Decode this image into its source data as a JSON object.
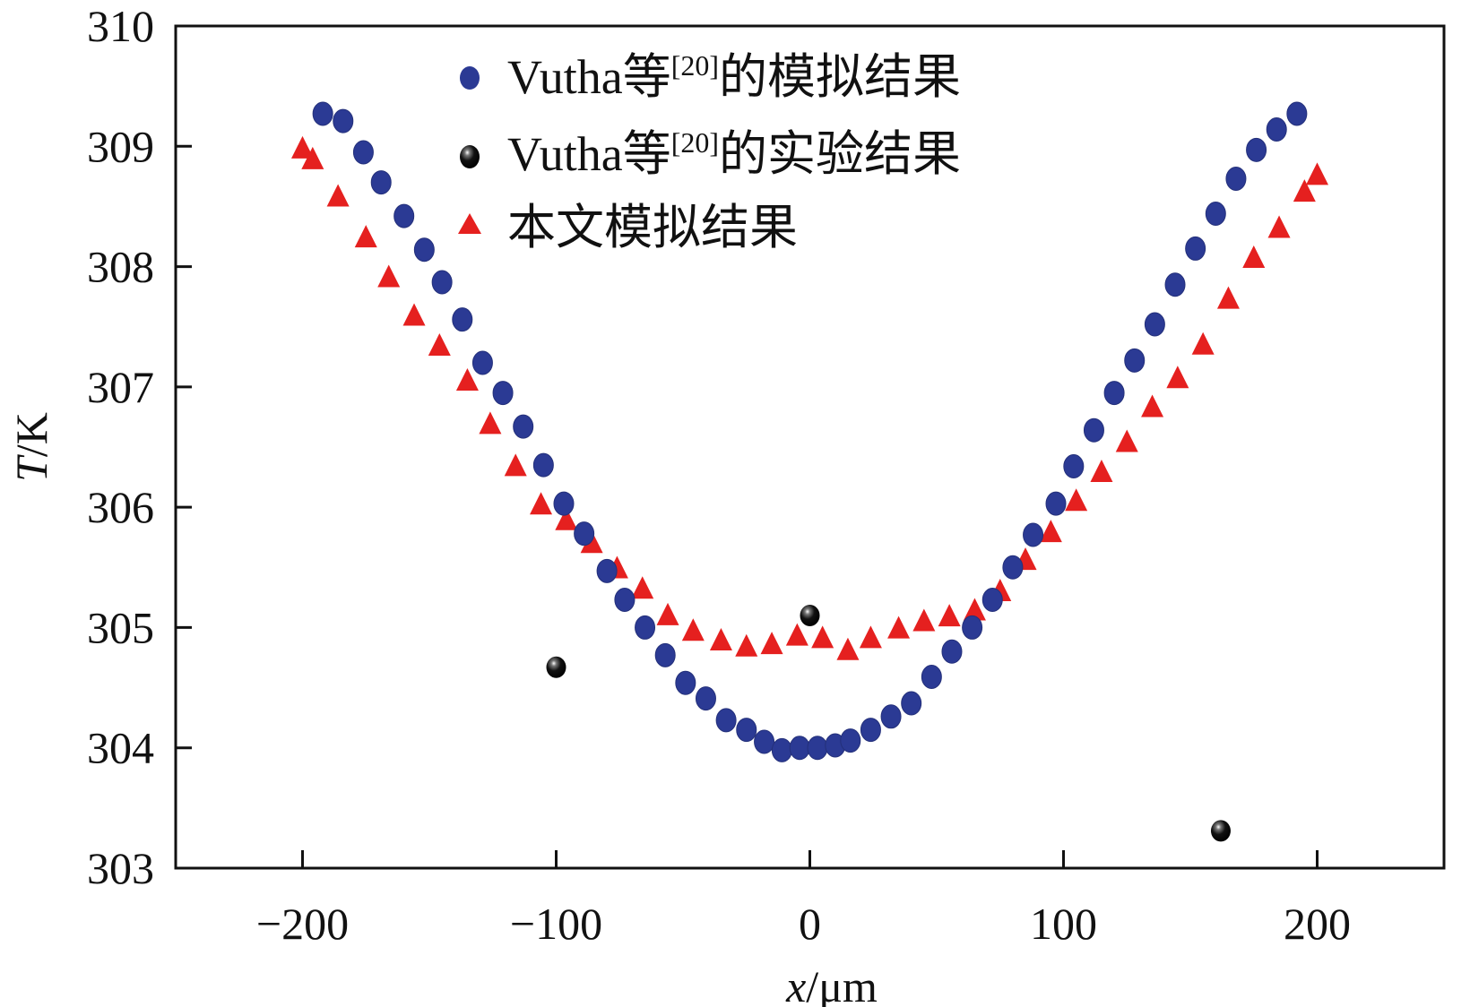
{
  "chart_data": {
    "type": "scatter",
    "title": "",
    "xlabel_var": "x",
    "xlabel_unit": "/μm",
    "ylabel_var": "T",
    "ylabel_unit": "/K",
    "xlim": [
      -250,
      250
    ],
    "ylim": [
      303,
      310
    ],
    "xticks": [
      -200,
      -100,
      0,
      100,
      200
    ],
    "xtick_labels": [
      "−200",
      "−100",
      "0",
      "100",
      "200"
    ],
    "yticks": [
      303,
      304,
      305,
      306,
      307,
      308,
      309,
      310
    ],
    "ytick_labels": [
      "303",
      "304",
      "305",
      "306",
      "307",
      "308",
      "309",
      "310"
    ],
    "grid": false,
    "legend_position": "top-center",
    "series": [
      {
        "name": "Vutha等[20]的模拟结果",
        "legend_main": "Vutha等",
        "legend_sup": "[20]",
        "legend_tail": "的模拟结果",
        "marker": "circle",
        "color": "#2b3a94",
        "x": [
          -192,
          -184,
          -176,
          -169,
          -160,
          -152,
          -145,
          -137,
          -129,
          -121,
          -113,
          -105,
          -97,
          -89,
          -80,
          -73,
          -65,
          -57,
          -49,
          -41,
          -33,
          -25,
          -18,
          -11,
          -4,
          3,
          10,
          16,
          24,
          32,
          40,
          48,
          56,
          64,
          72,
          80,
          88,
          97,
          104,
          112,
          120,
          128,
          136,
          144,
          152,
          160,
          168,
          176,
          184,
          192
        ],
        "y": [
          309.27,
          309.21,
          308.95,
          308.7,
          308.42,
          308.14,
          307.87,
          307.56,
          307.2,
          306.95,
          306.67,
          306.35,
          306.03,
          305.78,
          305.47,
          305.23,
          305.0,
          304.77,
          304.54,
          304.41,
          304.23,
          304.15,
          304.05,
          303.98,
          304.0,
          304.0,
          304.02,
          304.06,
          304.15,
          304.26,
          304.37,
          304.59,
          304.8,
          305.0,
          305.23,
          305.5,
          305.77,
          306.03,
          306.34,
          306.64,
          306.95,
          307.22,
          307.52,
          307.85,
          308.15,
          308.44,
          308.73,
          308.97,
          309.14,
          309.27
        ]
      },
      {
        "name": "Vutha等[20]的实验结果",
        "legend_main": "Vutha等",
        "legend_sup": "[20]",
        "legend_tail": "的实验结果",
        "marker": "sphere",
        "color": "#111111",
        "x": [
          -100,
          0,
          162
        ],
        "y": [
          304.67,
          305.1,
          303.31
        ]
      },
      {
        "name": "本文模拟结果",
        "legend_main": "本文模拟结果",
        "legend_sup": "",
        "legend_tail": "",
        "marker": "triangle",
        "color": "#e5201f",
        "x": [
          -200,
          -196,
          -186,
          -175,
          -166,
          -156,
          -146,
          -135,
          -126,
          -116,
          -106,
          -96,
          -86,
          -76,
          -66,
          -56,
          -46,
          -35,
          -25,
          -15,
          -5,
          5,
          15,
          24,
          35,
          45,
          55,
          65,
          75,
          85,
          95,
          105,
          115,
          125,
          135,
          145,
          155,
          165,
          175,
          185,
          195,
          200
        ],
        "y": [
          308.97,
          308.88,
          308.57,
          308.23,
          307.9,
          307.58,
          307.33,
          307.04,
          306.68,
          306.33,
          306.01,
          305.88,
          305.69,
          305.48,
          305.31,
          305.09,
          304.96,
          304.88,
          304.83,
          304.85,
          304.92,
          304.9,
          304.8,
          304.9,
          304.98,
          305.04,
          305.08,
          305.13,
          305.29,
          305.55,
          305.78,
          306.04,
          306.28,
          306.53,
          306.82,
          307.06,
          307.34,
          307.72,
          308.06,
          308.31,
          308.61,
          308.75
        ]
      }
    ]
  }
}
